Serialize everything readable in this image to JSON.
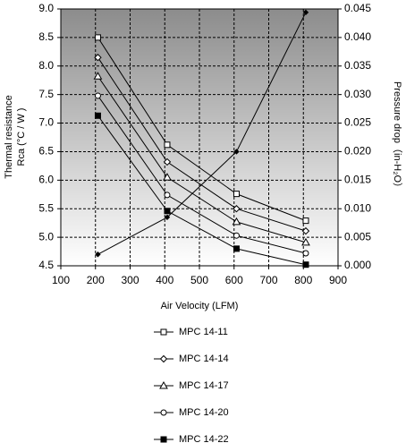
{
  "chart_data": {
    "type": "line",
    "xlabel": "Air Velocity (LFM)",
    "ylabel": [
      "Thermal resistance",
      "Rca (°C / W )"
    ],
    "y2label": "Pressure drop（in-H₂O）",
    "x": [
      207,
      407,
      607,
      807
    ],
    "series": [
      {
        "name": "MPC 14-11",
        "color": "#000000",
        "marker": "square-open",
        "values": [
          8.5,
          6.62,
          5.76,
          5.29
        ]
      },
      {
        "name": "MPC 14-14",
        "color": "#000000",
        "marker": "diamond-open",
        "values": [
          8.15,
          6.32,
          5.5,
          5.11
        ]
      },
      {
        "name": "MPC 14-17",
        "color": "#000000",
        "marker": "triangle-open",
        "values": [
          7.82,
          6.05,
          5.27,
          4.91
        ]
      },
      {
        "name": "MPC 14-20",
        "color": "#000000",
        "marker": "circle-open",
        "values": [
          7.48,
          5.74,
          5.03,
          4.72
        ]
      },
      {
        "name": "MPC 14-22",
        "color": "#000000",
        "marker": "square-filled",
        "values": [
          7.13,
          5.46,
          4.8,
          4.52
        ]
      },
      {
        "color": "#000000",
        "marker": "diamond-filled",
        "axis": "y2",
        "values": [
          0.002,
          0.0085,
          0.02,
          0.0444
        ]
      }
    ],
    "xlim": [
      100,
      900
    ],
    "xticks": [
      100,
      200,
      300,
      400,
      500,
      600,
      700,
      800,
      900
    ],
    "ylim": [
      4.5,
      9.0
    ],
    "yticks": [
      4.5,
      {
        "value": 5,
        "label": "5.0"
      },
      5.5,
      {
        "value": 6,
        "label": "6.0"
      },
      6.5,
      {
        "value": 7,
        "label": "7.0"
      },
      7.5,
      {
        "value": 8,
        "label": "8.0"
      },
      8.5,
      {
        "value": 9,
        "label": "9.0"
      }
    ],
    "y2lim": [
      0,
      0.045
    ],
    "y2ticks": [
      {
        "value": 0,
        "label": "0.000"
      },
      0.005,
      {
        "value": 0.01,
        "label": "0.010"
      },
      0.015,
      {
        "value": 0.02,
        "label": "0.020"
      },
      0.025,
      {
        "value": 0.03,
        "label": "0.030"
      },
      0.035,
      {
        "value": 0.04,
        "label": "0.040"
      },
      0.045
    ],
    "grid": true,
    "legend": "bottom"
  }
}
